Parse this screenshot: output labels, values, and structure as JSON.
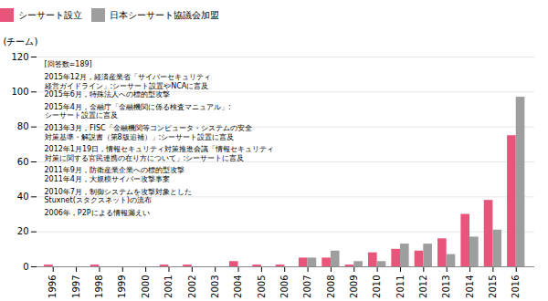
{
  "chart_data": {
    "type": "bar",
    "categories": [
      "1996",
      "1997",
      "1998",
      "1999",
      "2000",
      "2001",
      "2002",
      "2003",
      "2004",
      "2005",
      "2006",
      "2007",
      "2008",
      "2009",
      "2010",
      "2011",
      "2012",
      "2013",
      "2014",
      "2015",
      "2016"
    ],
    "series": [
      {
        "name": "シーサート設立",
        "color": "#e8547a",
        "values": [
          1,
          0,
          1,
          0,
          0,
          1,
          1,
          0,
          3,
          1,
          1,
          5,
          5,
          1,
          8,
          10,
          9,
          16,
          30,
          38,
          75
        ]
      },
      {
        "name": "日本シーサート協議会加盟",
        "color": "#9e9e9e",
        "values": [
          0,
          0,
          0,
          0,
          0,
          0,
          0,
          0,
          0,
          0,
          0,
          5,
          9,
          3,
          3,
          13,
          13,
          7,
          17,
          21,
          97
        ]
      }
    ],
    "y_label": "(チーム)",
    "ylim": [
      0,
      120
    ],
    "yticks": [
      0,
      20,
      40,
      60,
      80,
      100,
      120
    ],
    "grid": true,
    "annotations": [
      "[回答数=189]",
      "2006年，P2Pによる情報漏えい",
      "2010年7月，制御システムを攻撃対象とした\nStuxnet(スタクスネット)の流布",
      "2011年9月，防衛産業企業への標的型攻撃\n2011年4月，大規模サイバー攻撃事案",
      "2012年1月19日，情報セキュリティ対策推進会議「情報セキュリティ\n対策に関する官民連携の在り方について」:シーサートに言及",
      "2013年3月，FISC「金融機関等コンピュータ・システムの安全\n対策基準・解説書（第8版追補）」:シーサート設置に言及",
      "2015年4月，金融庁「金融機関に係る検査マニュアル」:\nシーサート設置に言及",
      "2015年12月，経済産業省「サイバーセキュリティ\n経営ガイドライン」:シーサート設置やNCAに言及\n2015年6月，特殊法人への標的型攻撃"
    ]
  }
}
